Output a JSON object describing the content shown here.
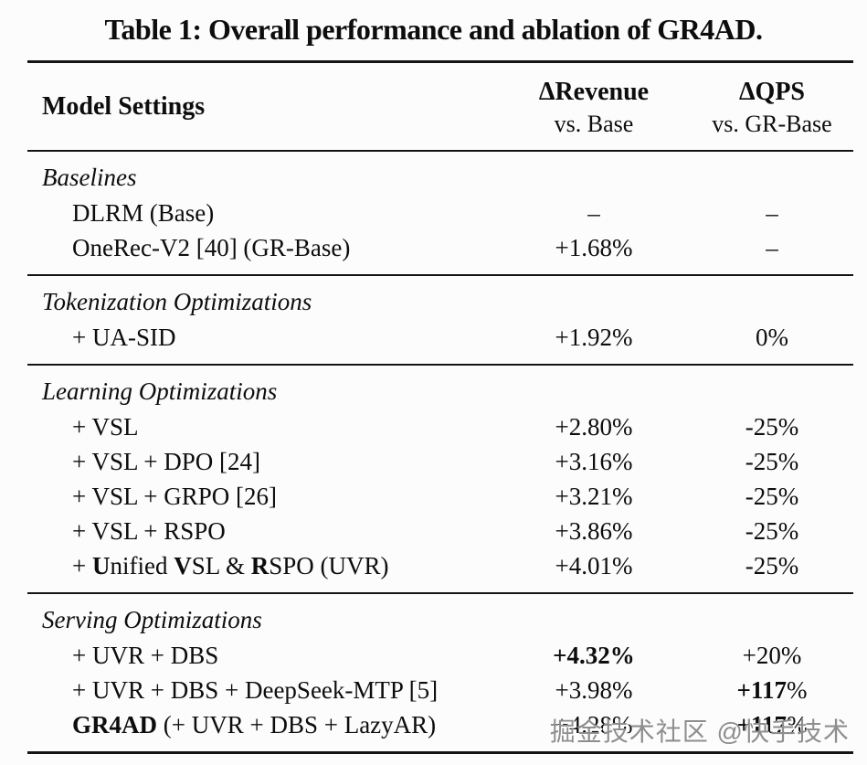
{
  "title": "Table 1: Overall performance and ablation of GR4AD.",
  "header": {
    "model_settings": "Model Settings",
    "revenue_line1": "ΔRevenue",
    "revenue_line2": "vs. Base",
    "qps_line1": "ΔQPS",
    "qps_line2": "vs. GR-Base"
  },
  "sections": [
    {
      "title": "Baselines",
      "rows": [
        {
          "label": [
            [
              "DLRM (Base)",
              false
            ]
          ],
          "revenue": [
            [
              "–",
              false
            ]
          ],
          "qps": [
            [
              "–",
              false
            ]
          ]
        },
        {
          "label": [
            [
              "OneRec-V2 [40] (GR-Base)",
              false
            ]
          ],
          "revenue": [
            [
              "+1.68%",
              false
            ]
          ],
          "qps": [
            [
              "–",
              false
            ]
          ]
        }
      ]
    },
    {
      "title": "Tokenization Optimizations",
      "rows": [
        {
          "label": [
            [
              "+ UA-SID",
              false
            ]
          ],
          "revenue": [
            [
              "+1.92%",
              false
            ]
          ],
          "qps": [
            [
              "0%",
              false
            ]
          ]
        }
      ]
    },
    {
      "title": "Learning Optimizations",
      "rows": [
        {
          "label": [
            [
              "+ VSL",
              false
            ]
          ],
          "revenue": [
            [
              "+2.80%",
              false
            ]
          ],
          "qps": [
            [
              "-25%",
              false
            ]
          ]
        },
        {
          "label": [
            [
              "+ VSL + DPO [24]",
              false
            ]
          ],
          "revenue": [
            [
              "+3.16%",
              false
            ]
          ],
          "qps": [
            [
              "-25%",
              false
            ]
          ]
        },
        {
          "label": [
            [
              "+ VSL + GRPO [26]",
              false
            ]
          ],
          "revenue": [
            [
              "+3.21%",
              false
            ]
          ],
          "qps": [
            [
              "-25%",
              false
            ]
          ]
        },
        {
          "label": [
            [
              "+ VSL + RSPO",
              false
            ]
          ],
          "revenue": [
            [
              "+3.86%",
              false
            ]
          ],
          "qps": [
            [
              "-25%",
              false
            ]
          ]
        },
        {
          "label": [
            [
              "+ ",
              false
            ],
            [
              "U",
              true
            ],
            [
              "nified ",
              false
            ],
            [
              "V",
              true
            ],
            [
              "SL & ",
              false
            ],
            [
              "R",
              true
            ],
            [
              "SPO (UVR)",
              false
            ]
          ],
          "revenue": [
            [
              "+4.01%",
              false
            ]
          ],
          "qps": [
            [
              "-25%",
              false
            ]
          ]
        }
      ]
    },
    {
      "title": "Serving Optimizations",
      "rows": [
        {
          "label": [
            [
              "+ UVR + DBS",
              false
            ]
          ],
          "revenue": [
            [
              "+4.32%",
              true
            ]
          ],
          "qps": [
            [
              "+20%",
              false
            ]
          ]
        },
        {
          "label": [
            [
              "+ UVR + DBS + DeepSeek-MTP [5]",
              false
            ]
          ],
          "revenue": [
            [
              "+3.98%",
              false
            ]
          ],
          "qps": [
            [
              "+117",
              true
            ],
            [
              "%",
              false
            ]
          ]
        },
        {
          "label": [
            [
              "GR4AD",
              true
            ],
            [
              " (+ UVR + DBS + LazyAR)",
              false
            ]
          ],
          "revenue": [
            [
              "+4.28%",
              false
            ]
          ],
          "qps": [
            [
              "+117",
              true
            ],
            [
              "%",
              false
            ]
          ]
        }
      ]
    }
  ],
  "watermark": {
    "text": "掘金技术社区 @快手技术"
  }
}
